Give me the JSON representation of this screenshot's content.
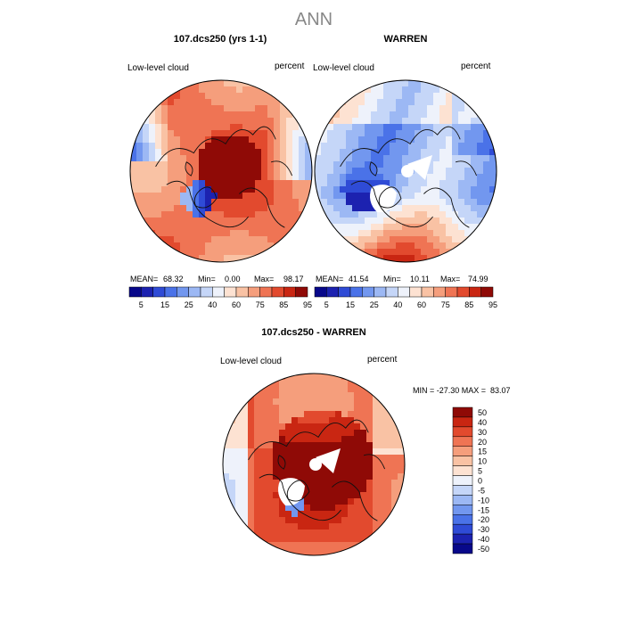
{
  "page_title": "ANN",
  "palette": [
    "#08088a",
    "#1c22b0",
    "#2f4bd6",
    "#4a72e8",
    "#7297ef",
    "#9cb8f4",
    "#c5d6f8",
    "#eef2fb",
    "#fde2d2",
    "#f9c2a4",
    "#f59e7c",
    "#ef7454",
    "#e24a2e",
    "#c92612",
    "#8f0a06"
  ],
  "chart_data": [
    {
      "type": "heatmap",
      "title": "107.dcs250 (yrs 1-1)",
      "variable": "Low-level cloud",
      "units": "percent",
      "stats": {
        "mean_label": "MEAN=",
        "mean": "68.32",
        "min_label": "Min=",
        "min": "0.00",
        "max_label": "Max=",
        "max": "98.17"
      },
      "colorbar_ticks": [
        "5",
        "15",
        "25",
        "40",
        "60",
        "75",
        "85",
        "95"
      ],
      "base_level": 11
    },
    {
      "type": "heatmap",
      "title": "WARREN",
      "variable": "Low-level cloud",
      "units": "percent",
      "stats": {
        "mean_label": "MEAN=",
        "mean": "41.54",
        "min_label": "Min=",
        "min": "10.11",
        "max_label": "Max=",
        "max": "74.99"
      },
      "colorbar_ticks": [
        "5",
        "15",
        "25",
        "40",
        "60",
        "75",
        "85",
        "95"
      ],
      "base_level": 5
    },
    {
      "type": "heatmap",
      "title": "107.dcs250 - WARREN",
      "variable": "Low-level cloud",
      "units": "percent",
      "stats_text": "MIN = -27.30 MAX =  83.07",
      "colorbar_ticks": [
        "50",
        "40",
        "30",
        "20",
        "15",
        "10",
        "5",
        "0",
        "-5",
        "-10",
        "-15",
        "-20",
        "-30",
        "-40",
        "-50"
      ],
      "base_level": 12
    }
  ]
}
